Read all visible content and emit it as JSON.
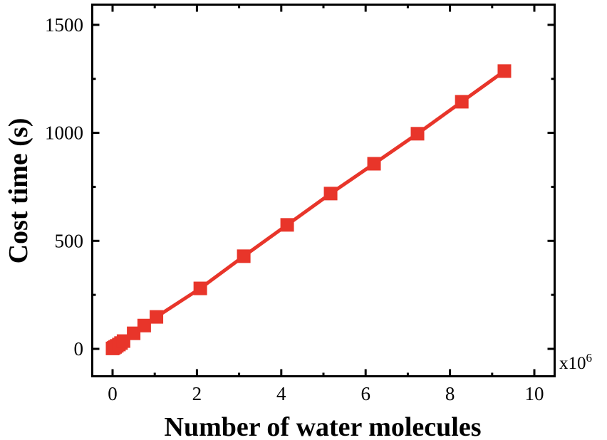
{
  "chart_data": {
    "type": "line",
    "title": "",
    "xlabel": "Number of water molecules",
    "ylabel": "Cost time (s)",
    "x_multiplier": "x10",
    "x_multiplier_exp": "6",
    "xlim": [
      -0.5,
      10.5
    ],
    "ylim": [
      -130,
      1580
    ],
    "xticks": [
      0,
      2,
      4,
      6,
      8,
      10
    ],
    "xtick_labels": [
      "0",
      "2",
      "4",
      "6",
      "8",
      "10"
    ],
    "yticks": [
      0,
      500,
      1000,
      1500
    ],
    "ytick_labels": [
      "0",
      "500",
      "1000",
      "1500"
    ],
    "grid": false,
    "legend": null,
    "marker": "square",
    "color": "#e8352a",
    "series": [
      {
        "name": "Cost time",
        "x": [
          0.0,
          0.03,
          0.06,
          0.1,
          0.15,
          0.2,
          0.26,
          0.5,
          0.75,
          1.04,
          2.08,
          3.11,
          4.14,
          5.17,
          6.2,
          7.23,
          8.28,
          9.29
        ],
        "y": [
          2,
          5,
          9,
          14,
          20,
          27,
          36,
          72,
          108,
          148,
          280,
          429,
          574,
          719,
          857,
          996,
          1144,
          1286
        ]
      }
    ]
  }
}
